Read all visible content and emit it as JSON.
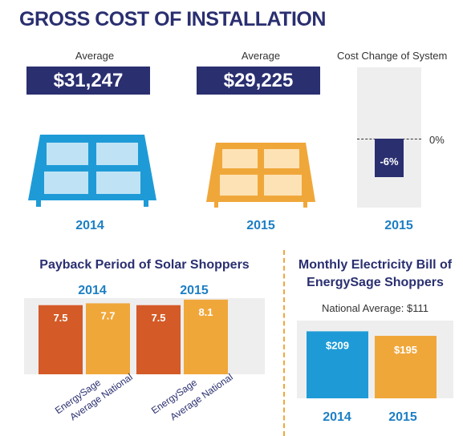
{
  "title": "GROSS COST OF INSTALLATION",
  "install": {
    "avg_label": "Average",
    "y2014": {
      "year": "2014",
      "value": "$31,247"
    },
    "y2015": {
      "year": "2015",
      "value": "$29,225"
    }
  },
  "cost_change": {
    "title": "Cost Change of System",
    "zero_label": "0%",
    "value_label": "-6%",
    "year": "2015"
  },
  "payback": {
    "title": "Payback Period of Solar Shoppers",
    "year_a": "2014",
    "year_b": "2015"
  },
  "bill": {
    "title_line1": "Monthly Electricity Bill of",
    "title_line2": "EnergySage Shoppers",
    "national": "National Average: $111",
    "year_a": "2014",
    "year_b": "2015"
  },
  "colors": {
    "navy": "#2a2f70",
    "blue": "#1e9bd7",
    "orange": "#f0a73a",
    "red": "#d45a27"
  },
  "chart_data": [
    {
      "type": "bar",
      "title": "Cost Change of System",
      "categories": [
        "2015"
      ],
      "values": [
        -6
      ],
      "value_labels": [
        "-6%"
      ]
    },
    {
      "type": "bar",
      "title": "Payback Period of Solar Shoppers",
      "groups": [
        "2014",
        "2015"
      ],
      "categories": [
        "EnergySage",
        "Average National"
      ],
      "series": [
        {
          "name": "EnergySage",
          "values": [
            7.5,
            7.5
          ],
          "labels": [
            "7.5",
            "7.5"
          ]
        },
        {
          "name": "Average National",
          "values": [
            7.7,
            8.1
          ],
          "labels": [
            "7.7",
            "8.1"
          ]
        }
      ]
    },
    {
      "type": "bar",
      "title": "Monthly Electricity Bill of EnergySage Shoppers",
      "categories": [
        "2014",
        "2015"
      ],
      "values": [
        209,
        195
      ],
      "value_labels": [
        "$209",
        "$195"
      ]
    }
  ]
}
